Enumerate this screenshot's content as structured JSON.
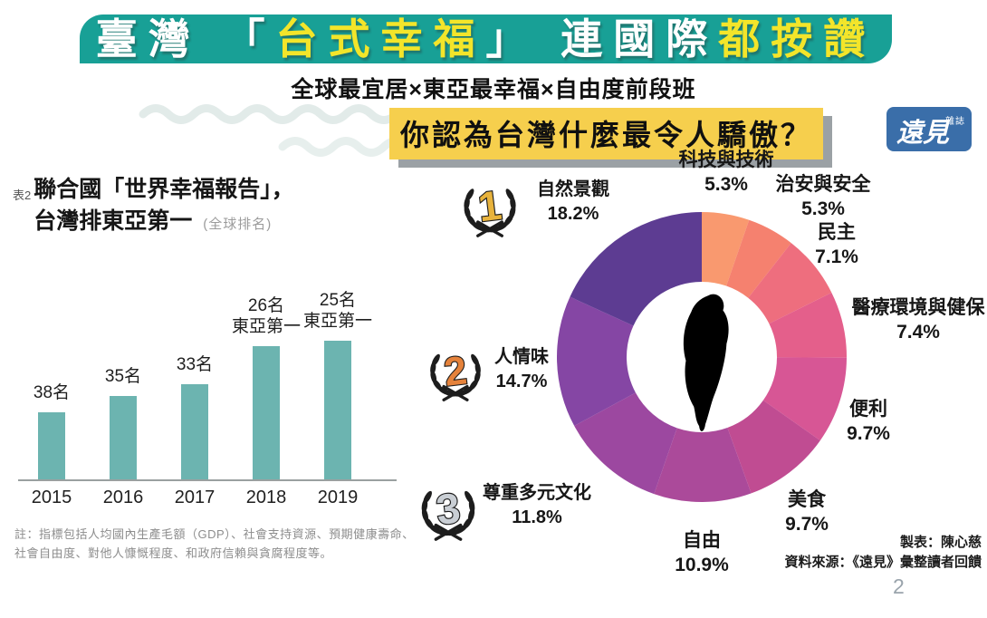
{
  "page": {
    "number": "2"
  },
  "header": {
    "banner_color": "#18A096",
    "title_segments": [
      {
        "text": "臺灣 「",
        "color": "#FFFFFF"
      },
      {
        "text": "台式幸福",
        "color": "#F3E52A"
      },
      {
        "text": "」 連國際",
        "color": "#FFFFFF"
      },
      {
        "text": "都按讚",
        "color": "#F3E52A"
      }
    ],
    "subtitle": "全球最宜居×東亞最幸福×自由度前段班"
  },
  "left_panel": {
    "table_tag": "表2",
    "title_line1": "聯合國「世界幸福報告」，",
    "title_line2": "台灣排東亞第一",
    "title_note": "(全球排名)",
    "footnote_line1": "註：指標包括人均國內生產毛額（GDP）、社會支持資源、預期健康壽命、",
    "footnote_line2": "社會自由度、對他人慷慨程度、和政府信賴與貪腐程度等。"
  },
  "right_panel": {
    "question": "你認為台灣什麼最令人驕傲？",
    "highlight_color": "#F6CF4D",
    "logo": {
      "text": "遠見",
      "small_text": "雜誌",
      "bg_color": "#3A6EA9"
    },
    "rankings": [
      {
        "rank": "1",
        "number_color": "#E8B33C",
        "label": "自然景觀",
        "value": "18.2%"
      },
      {
        "rank": "2",
        "number_color": "#E5823B",
        "label": "人情味",
        "value": "14.7%"
      },
      {
        "rank": "3",
        "number_color": "#C9CED4",
        "label": "尊重多元文化",
        "value": "11.8%"
      }
    ],
    "credits_line1": "製表：陳心慈",
    "credits_line2": "資料來源：《遠見》彙整讀者回饋"
  },
  "chart_data": [
    {
      "type": "bar",
      "title": "聯合國「世界幸福報告」，台灣排東亞第一（全球排名）",
      "categories": [
        "2015",
        "2016",
        "2017",
        "2018",
        "2019"
      ],
      "values": [
        38,
        35,
        33,
        26,
        25
      ],
      "labels": [
        "38名",
        "35名",
        "33名",
        "26名",
        "25名"
      ],
      "sublabels": [
        "",
        "",
        "",
        "東亞第一",
        "東亞第一"
      ],
      "value_unit": "名",
      "note_direction": "lower-rank-number-means-taller-bar",
      "bar_color": "#6CB4B0",
      "grid": false
    },
    {
      "type": "pie",
      "subtype": "donut",
      "title": "你認為台灣什麼最令人驕傲？",
      "start_angle": "12-oclock",
      "direction": "clockwise",
      "inner_radius_ratio": 0.52,
      "center_icon": "taiwan-island-silhouette",
      "segments": [
        {
          "label": "科技與技術",
          "value": 5.3,
          "pct": "5.3%",
          "color": "#F9996F"
        },
        {
          "label": "治安與安全",
          "value": 5.3,
          "pct": "5.3%",
          "color": "#F5816F"
        },
        {
          "label": "民主",
          "value": 7.1,
          "pct": "7.1%",
          "color": "#EE6E7E"
        },
        {
          "label": "醫療環境與健保",
          "value": 7.4,
          "pct": "7.4%",
          "color": "#E45F8B"
        },
        {
          "label": "便利",
          "value": 9.7,
          "pct": "9.7%",
          "color": "#D75695"
        },
        {
          "label": "美食",
          "value": 9.7,
          "pct": "9.7%",
          "color": "#C04C92"
        },
        {
          "label": "自由",
          "value": 10.9,
          "pct": "10.9%",
          "color": "#AB4A9A"
        },
        {
          "label": "尊重多元文化",
          "value": 11.8,
          "pct": "11.8%",
          "color": "#9C48A0"
        },
        {
          "label": "人情味",
          "value": 14.7,
          "pct": "14.7%",
          "color": "#8546A4"
        },
        {
          "label": "自然景觀",
          "value": 18.2,
          "pct": "18.2%",
          "color": "#5D3C92"
        }
      ]
    }
  ]
}
